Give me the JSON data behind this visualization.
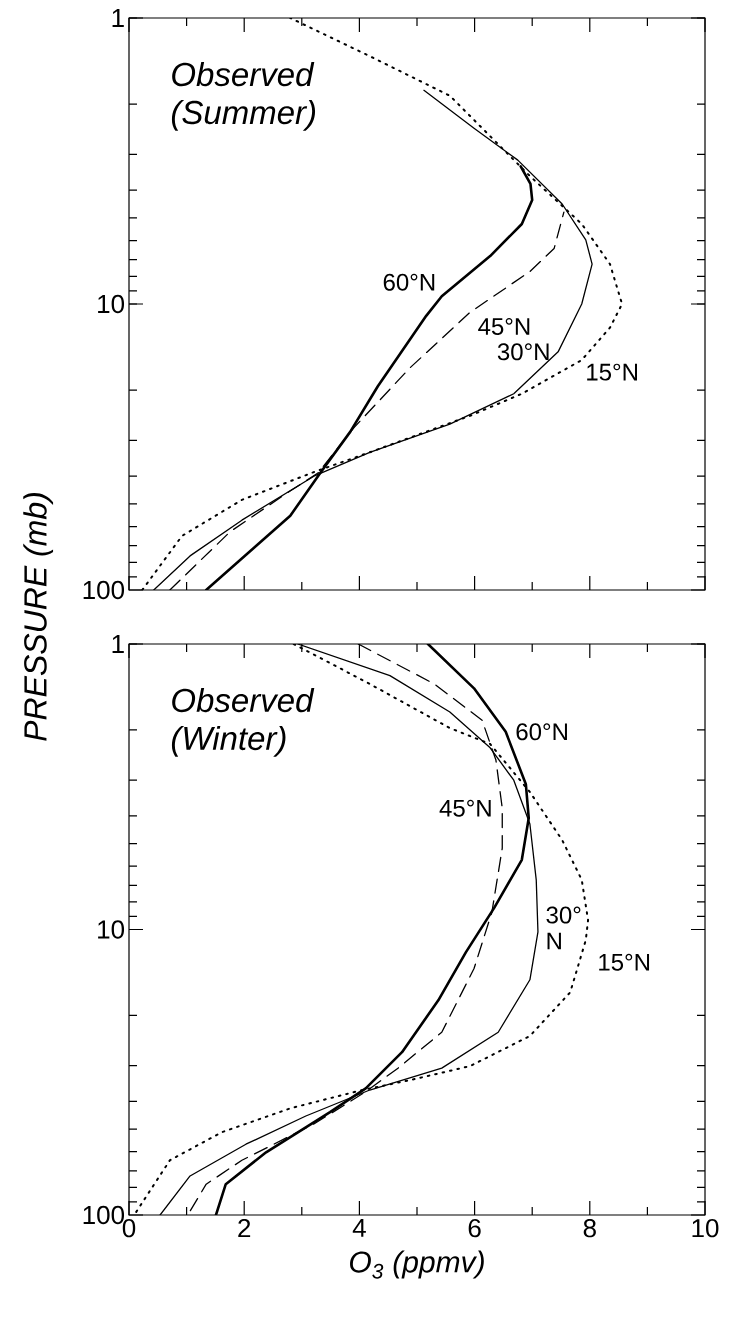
{
  "chart_data": [
    {
      "type": "line",
      "ylabel": "PRESSURE (mb)",
      "annotations": [
        "Observed (Summer)"
      ],
      "xlim": [
        0,
        10
      ],
      "xticks": [
        0,
        2,
        4,
        6,
        8,
        10
      ],
      "ylim": [
        100,
        1
      ],
      "yticks": [
        1,
        10,
        100
      ],
      "log": "y",
      "tick_labels": "y",
      "legend": false,
      "grid": false,
      "marker": "none",
      "series": [
        {
          "name": "60°N",
          "color": "#000000",
          "line_style": "solid",
          "x": [
            1.34,
            2.8,
            3.32,
            3.84,
            4.32,
            5.16,
            5.43,
            6.27,
            6.82,
            7.0,
            6.97,
            6.8
          ],
          "values": [
            100,
            55,
            39,
            28,
            19.4,
            11,
            9.4,
            6.8,
            5.25,
            4.33,
            3.8,
            3.3
          ]
        },
        {
          "name": "45°N",
          "color": "#000000",
          "line_style": "dashed",
          "x": [
            0.71,
            1.75,
            2.66,
            3.28,
            3.91,
            4.88,
            5.92,
            6.96,
            7.38,
            7.55
          ],
          "values": [
            100,
            62.7,
            47,
            39,
            27,
            16.7,
            10.7,
            7.7,
            6.4,
            4.77
          ]
        },
        {
          "name": "30°N",
          "color": "#000000",
          "line_style": "solid",
          "x": [
            0.43,
            1.06,
            1.96,
            3.21,
            4.18,
            5.57,
            6.68,
            7.45,
            7.86,
            8.04,
            7.93,
            7.52,
            6.75,
            5.99,
            5.12
          ],
          "values": [
            100,
            76,
            57,
            40,
            33,
            26.3,
            20.6,
            14.7,
            10,
            7.25,
            5.97,
            4.47,
            3.14,
            2.43,
            1.79
          ]
        },
        {
          "name": "15°N",
          "color": "#000000",
          "line_style": "dotted",
          "x": [
            0.23,
            0.92,
            1.96,
            3.21,
            4.18,
            5.92,
            6.82,
            7.86,
            8.35,
            8.56,
            8.35,
            7.86,
            6.96,
            5.57,
            4.18,
            2.8
          ],
          "values": [
            100,
            64.7,
            48.4,
            38.7,
            33,
            24.6,
            20.6,
            15.7,
            12.1,
            10,
            7.25,
            5.25,
            3.57,
            1.87,
            1.36,
            1.0
          ]
        }
      ]
    },
    {
      "type": "line",
      "xlabel": "O$_{3}$ (ppmv)",
      "annotations": [
        "Observed (Winter)"
      ],
      "xlim": [
        0,
        10
      ],
      "xticks": [
        0,
        2,
        4,
        6,
        8,
        10
      ],
      "ylim": [
        100,
        1
      ],
      "yticks": [
        1,
        10,
        100
      ],
      "log": "y",
      "legend": false,
      "grid": false,
      "marker": "none",
      "series": [
        {
          "name": "60°N",
          "color": "#000000",
          "line_style": "solid",
          "x": [
            5.19,
            5.99,
            6.54,
            6.89,
            6.94,
            6.82,
            6.34,
            5.85,
            5.37,
            4.74,
            4.11,
            3.49,
            2.38,
            1.68,
            1.51
          ],
          "values": [
            1,
            1.43,
            2.03,
            3.1,
            4.07,
            5.7,
            8.4,
            12,
            17.7,
            26.9,
            36,
            43.6,
            60.3,
            78,
            100
          ]
        },
        {
          "name": "45°N",
          "color": "#000000",
          "line_style": "dashed",
          "x": [
            3.98,
            5.3,
            6.13,
            6.37,
            6.48,
            6.48,
            6.3,
            5.99,
            5.43,
            4.67,
            4.11,
            3.21,
            1.96,
            1.34,
            1.02
          ],
          "values": [
            1,
            1.38,
            1.85,
            2.55,
            3.76,
            5.19,
            8.7,
            13.7,
            22.9,
            30.6,
            37,
            48,
            64.3,
            78,
            100
          ]
        },
        {
          "name": "30° N",
          "color": "#000000",
          "line_style": "solid",
          "x": [
            2.93,
            4.53,
            5.57,
            6.27,
            6.68,
            6.96,
            7.07,
            7.1,
            6.96,
            6.41,
            5.43,
            4.18,
            3.07,
            2.03,
            1.06,
            0.54
          ],
          "values": [
            1,
            1.29,
            1.73,
            2.31,
            3,
            4.27,
            6.7,
            10.2,
            15,
            22.9,
            30.6,
            36.5,
            45,
            56.5,
            73,
            100
          ]
        },
        {
          "name": "15°N",
          "color": "#000000",
          "line_style": "dotted",
          "x": [
            2.86,
            4.18,
            5.57,
            6.27,
            6.96,
            7.52,
            7.86,
            7.97,
            7.93,
            7.66,
            6.96,
            5.92,
            4.88,
            4.05,
            2.8,
            1.61,
            0.71,
            0.09
          ],
          "values": [
            1,
            1.38,
            1.97,
            2.24,
            3.3,
            4.86,
            6.7,
            9.27,
            10.9,
            16.6,
            23.6,
            30.1,
            33.7,
            36.5,
            42.3,
            51.3,
            64.3,
            100
          ]
        }
      ]
    }
  ]
}
